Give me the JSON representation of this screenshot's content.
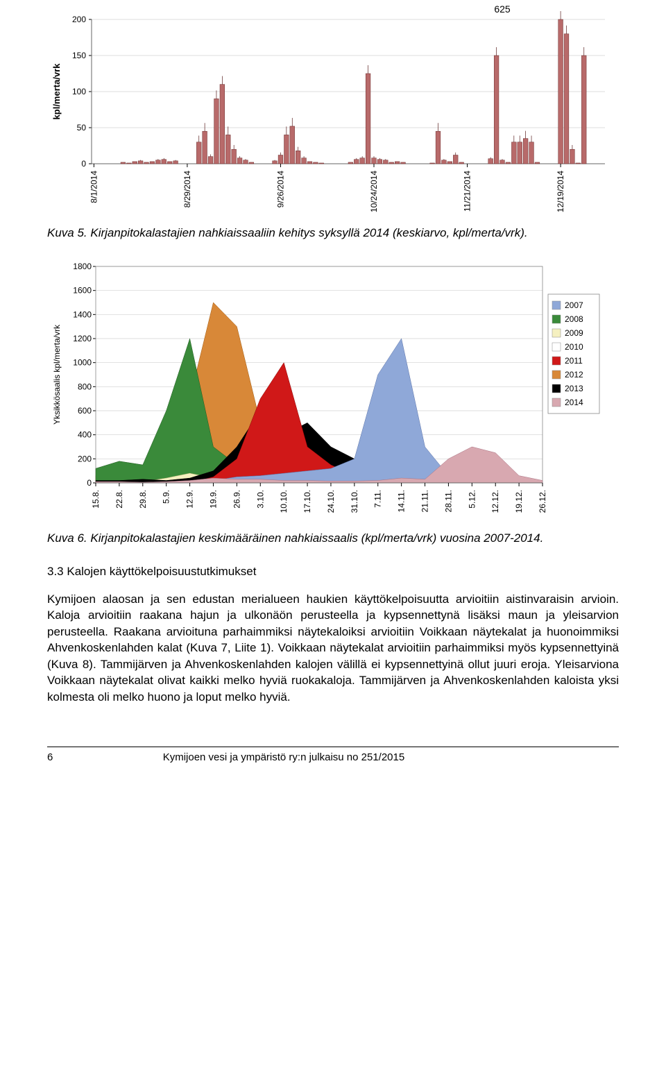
{
  "chart1": {
    "type": "bar",
    "ylabel": "kpl/merta/vrk",
    "ylim": [
      0,
      200
    ],
    "yticks": [
      0,
      50,
      100,
      150,
      200
    ],
    "xticks": [
      "8/1/2014",
      "8/29/2014",
      "9/26/2014",
      "10/24/2014",
      "11/21/2014",
      "12/19/2014"
    ],
    "callout": "625",
    "bar_color": "#b86a6a",
    "bar_stroke": "#6a2a2a",
    "grid_color": "#d0d0d0",
    "line_color": "#5a2020",
    "background": "#ffffff",
    "whisker_groups": [
      {
        "start": 5,
        "vals": [
          2,
          1,
          3,
          4,
          2,
          3,
          5,
          6,
          3,
          4
        ]
      },
      {
        "start": 18,
        "vals": [
          30,
          45,
          10,
          90,
          110,
          40,
          20,
          8,
          5,
          2
        ]
      },
      {
        "start": 31,
        "vals": [
          4,
          12,
          40,
          52,
          18,
          8,
          3,
          2,
          1
        ]
      },
      {
        "start": 44,
        "vals": [
          2,
          6,
          8,
          125,
          8,
          6,
          5,
          2,
          3,
          2
        ]
      },
      {
        "start": 58,
        "vals": [
          1,
          45,
          5,
          3,
          12,
          2
        ]
      },
      {
        "start": 68,
        "vals": [
          7,
          150,
          5,
          2,
          30,
          30,
          35,
          30,
          2
        ]
      },
      {
        "start": 80,
        "vals": [
          625,
          180,
          20,
          1,
          150
        ]
      }
    ]
  },
  "caption1": "Kuva 5. Kirjanpitokalastajien nahkiaissaaliin kehitys syksyllä 2014 (keskiarvo, kpl/merta/vrk).",
  "chart2": {
    "type": "area",
    "ylabel": "Yksikkösaalis kpl/merta/vrk",
    "ylim": [
      0,
      1800
    ],
    "yticks": [
      0,
      200,
      400,
      600,
      800,
      1000,
      1200,
      1400,
      1600,
      1800
    ],
    "xticks": [
      "15.8.",
      "22.8.",
      "29.8.",
      "5.9.",
      "12.9.",
      "19.9.",
      "26.9.",
      "3.10.",
      "10.10.",
      "17.10.",
      "24.10.",
      "31.10.",
      "7.11.",
      "14.11.",
      "21.11.",
      "28.11.",
      "5.12.",
      "12.12.",
      "19.12.",
      "26.12."
    ],
    "legend": [
      {
        "label": "2007",
        "color": "#8fa8d8"
      },
      {
        "label": "2008",
        "color": "#3a8a3a"
      },
      {
        "label": "2009",
        "color": "#f5f0c0"
      },
      {
        "label": "2010",
        "color": "#ffffff",
        "stroke": "#888"
      },
      {
        "label": "2011",
        "color": "#d01818"
      },
      {
        "label": "2012",
        "color": "#d88838"
      },
      {
        "label": "2013",
        "color": "#000000"
      },
      {
        "label": "2014",
        "color": "#d8a8b0"
      }
    ],
    "grid_color": "#d0d0d0",
    "background": "#ffffff"
  },
  "caption2": "Kuva 6. Kirjanpitokalastajien keskimääräinen nahkiaissaalis (kpl/merta/vrk) vuosina 2007-2014.",
  "heading": "3.3 Kalojen käyttökelpoisuustutkimukset",
  "body": "Kymijoen alaosan ja sen edustan merialueen haukien käyttökelpoisuutta arvioitiin aistinvaraisin arvioin. Kaloja arvioitiin raakana hajun ja ulkonäön perusteella ja kypsennettynä lisäksi maun ja yleisarvion perusteella. Raakana arvioituna parhaimmiksi näytekaloiksi arvioitiin Voikkaan näytekalat ja huonoimmiksi Ahvenkoskenlahden kalat (Kuva 7, Liite 1). Voikkaan näytekalat arvioitiin parhaimmiksi myös kypsennettyinä (Kuva 8). Tammijärven ja Ahvenkoskenlahden kalojen välillä ei kypsennettyinä ollut juuri eroja. Yleisarviona Voikkaan näytekalat olivat kaikki melko hyviä ruokakaloja. Tammijärven ja Ahvenkoskenlahden kaloista yksi kolmesta oli melko huono ja loput melko hyviä.",
  "footer": {
    "page": "6",
    "text": "Kymijoen vesi ja ympäristö ry:n julkaisu no 251/2015"
  }
}
